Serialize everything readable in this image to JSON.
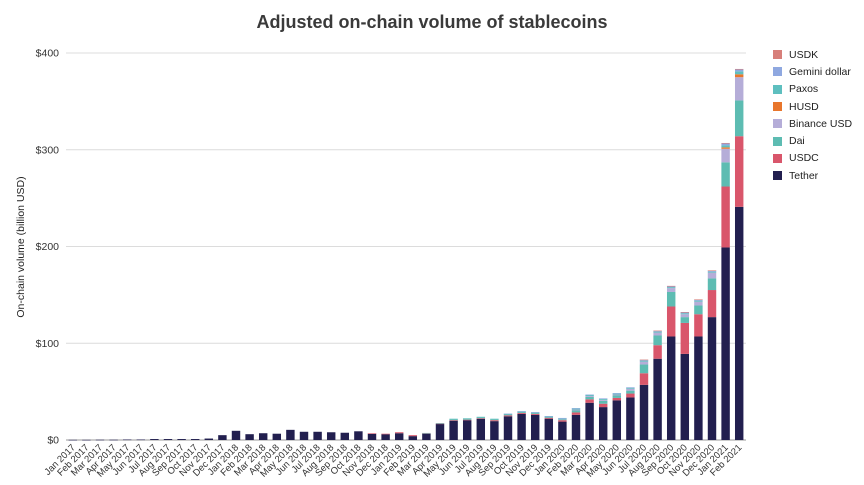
{
  "chart_data": {
    "type": "bar",
    "stacked": true,
    "title": "Adjusted on-chain volume of stablecoins",
    "xlabel": "",
    "ylabel": "On-chain volume (billion USD)",
    "ylim": [
      0,
      400
    ],
    "yticks": [
      0,
      100,
      200,
      300,
      400
    ],
    "ytick_labels": [
      "$0",
      "$100",
      "$200",
      "$300",
      "$400"
    ],
    "grid": true,
    "legend_position": "top-right",
    "categories": [
      "Jan 2017",
      "Feb 2017",
      "Mar 2017",
      "Apr 2017",
      "May 2017",
      "Jun 2017",
      "Jul 2017",
      "Aug 2017",
      "Sep 2017",
      "Oct 2017",
      "Nov 2017",
      "Dec 2017",
      "Jan 2018",
      "Feb 2018",
      "Mar 2018",
      "Apr 2018",
      "May 2018",
      "Jun 2018",
      "Jul 2018",
      "Aug 2018",
      "Sep 2018",
      "Oct 2018",
      "Nov 2018",
      "Dec 2018",
      "Jan 2019",
      "Feb 2019",
      "Mar 2019",
      "Apr 2019",
      "May 2019",
      "Jun 2019",
      "Jul 2019",
      "Aug 2019",
      "Sep 2019",
      "Oct 2019",
      "Nov 2019",
      "Dec 2019",
      "Jan 2020",
      "Feb 2020",
      "Mar 2020",
      "Apr 2020",
      "May 2020",
      "Jun 2020",
      "Jul 2020",
      "Aug 2020",
      "Sep 2020",
      "Oct 2020",
      "Nov 2020",
      "Dec 2020",
      "Jan 2021",
      "Feb 2021"
    ],
    "series": [
      {
        "name": "Tether",
        "color": "#221f4f",
        "values": [
          0.2,
          0.2,
          0.3,
          0.3,
          0.5,
          0.5,
          1.0,
          1.0,
          1.0,
          1.0,
          1.5,
          5.0,
          9.5,
          6.0,
          7.0,
          6.5,
          10.5,
          8.5,
          8.5,
          8.0,
          7.5,
          9.0,
          6.5,
          6.0,
          7.0,
          4.0,
          6.5,
          16.5,
          20.0,
          20.5,
          22.0,
          19.5,
          24.5,
          27.0,
          26.0,
          22.0,
          19.0,
          26.0,
          38.5,
          34.0,
          41.0,
          44.0,
          57.0,
          84.0,
          107.0,
          89.0,
          107.0,
          127.0,
          199.0,
          241.0
        ]
      },
      {
        "name": "USDC",
        "color": "#d9566b",
        "values": [
          0,
          0,
          0,
          0,
          0,
          0,
          0,
          0,
          0,
          0,
          0,
          0,
          0,
          0,
          0,
          0,
          0,
          0,
          0,
          0,
          0,
          0,
          0.4,
          0.5,
          1.0,
          1.0,
          0.5,
          0.5,
          0.5,
          0.5,
          0.5,
          1.0,
          1.0,
          1.0,
          1.0,
          1.0,
          1.5,
          2.5,
          3.5,
          3.5,
          2.5,
          4.0,
          12.0,
          14.0,
          31.0,
          32.0,
          23.0,
          28.0,
          63.0,
          73.0
        ]
      },
      {
        "name": "Dai",
        "color": "#5dbcb2",
        "values": [
          0,
          0,
          0,
          0,
          0,
          0,
          0,
          0,
          0,
          0,
          0,
          0,
          0,
          0,
          0,
          0,
          0,
          0,
          0,
          0,
          0,
          0,
          0,
          0,
          0,
          0,
          0,
          0,
          1.0,
          1.0,
          1.0,
          1.0,
          1.0,
          1.0,
          1.0,
          1.0,
          1.0,
          2.0,
          2.5,
          3.0,
          2.5,
          3.0,
          9.0,
          10.0,
          15.0,
          6.0,
          9.0,
          12.0,
          25.0,
          37.0
        ]
      },
      {
        "name": "Binance USD",
        "color": "#b5add8",
        "values": [
          0,
          0,
          0,
          0,
          0,
          0,
          0,
          0,
          0,
          0,
          0,
          0,
          0,
          0,
          0,
          0,
          0,
          0,
          0,
          0,
          0,
          0,
          0,
          0,
          0,
          0,
          0,
          0,
          0,
          0,
          0,
          0,
          0,
          0,
          0,
          0,
          0.5,
          1.0,
          1.0,
          1.0,
          1.0,
          2.0,
          3.0,
          3.0,
          4.0,
          3.0,
          4.0,
          6.0,
          14.0,
          24.0
        ]
      },
      {
        "name": "HUSD",
        "color": "#e8762c",
        "values": [
          0,
          0,
          0,
          0,
          0,
          0,
          0,
          0,
          0,
          0,
          0,
          0,
          0,
          0,
          0,
          0,
          0,
          0,
          0,
          0,
          0,
          0,
          0,
          0,
          0,
          0,
          0,
          0,
          0,
          0,
          0,
          0,
          0,
          0,
          0,
          0,
          0,
          0,
          0,
          0,
          0,
          0,
          0,
          0,
          0,
          0,
          0,
          0,
          1.5,
          3.0
        ]
      },
      {
        "name": "Paxos",
        "color": "#5ebfbf",
        "values": [
          0,
          0,
          0,
          0,
          0,
          0,
          0,
          0,
          0,
          0,
          0,
          0,
          0,
          0,
          0,
          0,
          0,
          0,
          0,
          0,
          0,
          0,
          0,
          0,
          0,
          0,
          0.3,
          0.5,
          0.5,
          0.5,
          0.5,
          0.5,
          0.5,
          0.5,
          0.5,
          0.5,
          0.5,
          1.0,
          1.0,
          1.0,
          1.0,
          1.0,
          1.0,
          1.0,
          1.0,
          1.0,
          1.0,
          1.0,
          2.0,
          3.0
        ]
      },
      {
        "name": "Gemini dollar",
        "color": "#8fa8e0",
        "values": [
          0,
          0,
          0,
          0,
          0,
          0,
          0,
          0,
          0,
          0,
          0,
          0,
          0,
          0,
          0,
          0,
          0,
          0,
          0,
          0,
          0,
          0,
          0,
          0,
          0,
          0,
          0,
          0,
          0,
          0,
          0,
          0,
          0.3,
          0.3,
          0.3,
          0.3,
          0.3,
          0.5,
          0.5,
          0.5,
          0.5,
          0.5,
          0.8,
          0.8,
          1.0,
          1.0,
          1.0,
          1.0,
          2.0,
          2.0
        ]
      },
      {
        "name": "USDK",
        "color": "#d77f7a",
        "values": [
          0,
          0,
          0,
          0,
          0,
          0,
          0,
          0,
          0,
          0,
          0,
          0,
          0,
          0,
          0,
          0,
          0,
          0,
          0,
          0,
          0,
          0,
          0,
          0,
          0,
          0,
          0,
          0,
          0,
          0,
          0,
          0,
          0,
          0,
          0,
          0,
          0,
          0,
          0,
          0,
          0,
          0,
          0.3,
          0.3,
          0.3,
          0.3,
          0.3,
          0.3,
          0.5,
          0.5
        ]
      }
    ],
    "legend": [
      "USDK",
      "Gemini dollar",
      "Paxos",
      "HUSD",
      "Binance USD",
      "Dai",
      "USDC",
      "Tether"
    ]
  }
}
